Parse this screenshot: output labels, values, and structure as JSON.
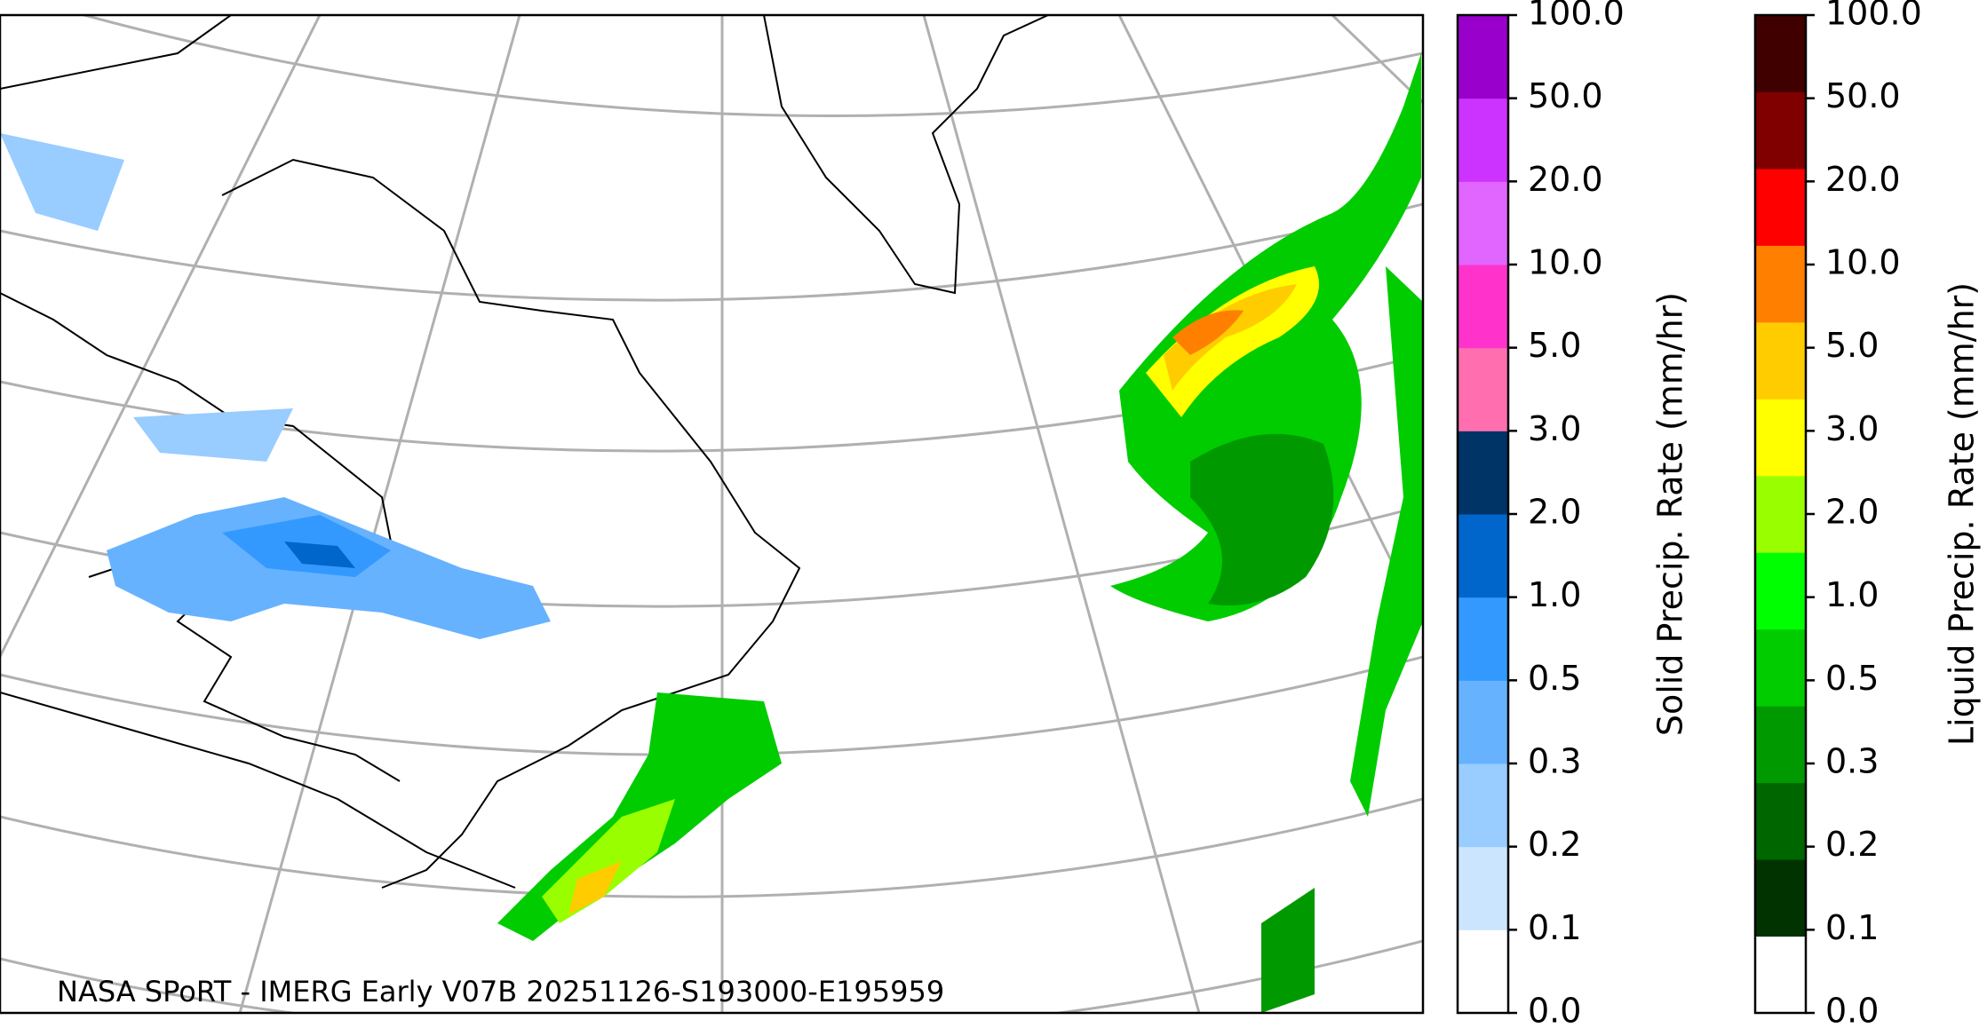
{
  "map": {
    "caption": "NASA SPoRT - IMERG Early V07B 20251126-S193000-E195959"
  },
  "colorbars": [
    {
      "label": "Solid Precip. Rate (mm/hr)",
      "ticks": [
        {
          "value": 0,
          "label": "0.0"
        },
        {
          "value": 0.1,
          "label": "0.1"
        },
        {
          "value": 0.2,
          "label": "0.2"
        },
        {
          "value": 0.3,
          "label": "0.3"
        },
        {
          "value": 0.5,
          "label": "0.5"
        },
        {
          "value": 1,
          "label": "1.0"
        },
        {
          "value": 2,
          "label": "2.0"
        },
        {
          "value": 3,
          "label": "3.0"
        },
        {
          "value": 5,
          "label": "5.0"
        },
        {
          "value": 10,
          "label": "10.0"
        },
        {
          "value": 20,
          "label": "20.0"
        },
        {
          "value": 50,
          "label": "50.0"
        },
        {
          "value": 100,
          "label": "100.0"
        }
      ],
      "colors": [
        "#ffffff",
        "#cce5ff",
        "#99ccff",
        "#66b2ff",
        "#3399ff",
        "#0066cc",
        "#003366",
        "#ff6fb0",
        "#ff33cc",
        "#e066ff",
        "#cc33ff",
        "#9900cc"
      ]
    },
    {
      "label": "Liquid Precip. Rate (mm/hr)",
      "ticks": [
        {
          "value": 0,
          "label": "0.0"
        },
        {
          "value": 0.1,
          "label": "0.1"
        },
        {
          "value": 0.2,
          "label": "0.2"
        },
        {
          "value": 0.3,
          "label": "0.3"
        },
        {
          "value": 0.5,
          "label": "0.5"
        },
        {
          "value": 1,
          "label": "1.0"
        },
        {
          "value": 2,
          "label": "2.0"
        },
        {
          "value": 3,
          "label": "3.0"
        },
        {
          "value": 5,
          "label": "5.0"
        },
        {
          "value": 10,
          "label": "10.0"
        },
        {
          "value": 20,
          "label": "20.0"
        },
        {
          "value": 50,
          "label": "50.0"
        },
        {
          "value": 100,
          "label": "100.0"
        }
      ],
      "colors": [
        "#ffffff",
        "#003300",
        "#006600",
        "#009900",
        "#00cc00",
        "#00ff00",
        "#99ff00",
        "#ffff00",
        "#ffcc00",
        "#ff8000",
        "#ff0000",
        "#800000",
        "#400000"
      ]
    }
  ]
}
